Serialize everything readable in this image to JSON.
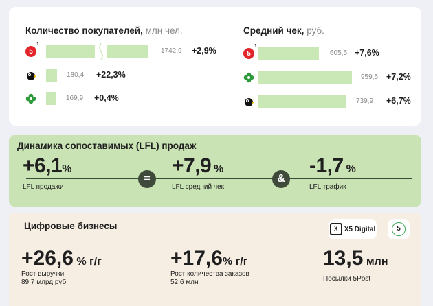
{
  "customers": {
    "title": "Количество покупателей,",
    "unit": " млн чел.",
    "rows": [
      {
        "icon": "pyaterochka-logo-icon",
        "sup": "1",
        "value": "1742,9",
        "change": "+2,9%",
        "share": 1.0
      },
      {
        "icon": "chizhik-bird-logo-icon",
        "value": "180,4",
        "change": "+22,3%",
        "share": 0.1
      },
      {
        "icon": "perekrestok-clover-logo-icon",
        "value": "169,9",
        "change": "+0,4%",
        "share": 0.1
      }
    ]
  },
  "check": {
    "title": "Средний чек,",
    "unit": " руб.",
    "rows": [
      {
        "icon": "pyaterochka-logo-icon",
        "sup": "1",
        "value": "605,5",
        "change": "+7,6%",
        "share": 0.63
      },
      {
        "icon": "perekrestok-clover-logo-icon",
        "value": "959,5",
        "change": "+7,2%",
        "share": 1.0
      },
      {
        "icon": "chizhik-bird-logo-icon",
        "value": "739,9",
        "change": "+6,7%",
        "share": 0.77
      }
    ]
  },
  "lfl": {
    "title": "Динамика сопоставимых (LFL) продаж",
    "items": [
      {
        "value": "+6,1",
        "unit": "%",
        "label": "LFL продажи"
      },
      {
        "value": "+7,9",
        "unit": " %",
        "label": "LFL средний чек"
      },
      {
        "value": "-1,7",
        "unit": " %",
        "label": "LFL трафик"
      }
    ],
    "op1": "=",
    "op2": "&"
  },
  "digital": {
    "title": "Цифровые бизнесы",
    "badge_x5": "X5 Digital",
    "badge_5post": "5",
    "items": [
      {
        "value": "+26,6",
        "suffix": " % г/г",
        "label1": "Рост выручки",
        "label2": "89,7 млрд руб."
      },
      {
        "value": "+17,6",
        "suffix": "% г/г",
        "label1": "Рост количества заказов",
        "label2": "52,6 млн"
      },
      {
        "value": "13,5",
        "suffix": " млн",
        "label1": "Посылки 5Post",
        "label2": ""
      }
    ]
  }
}
